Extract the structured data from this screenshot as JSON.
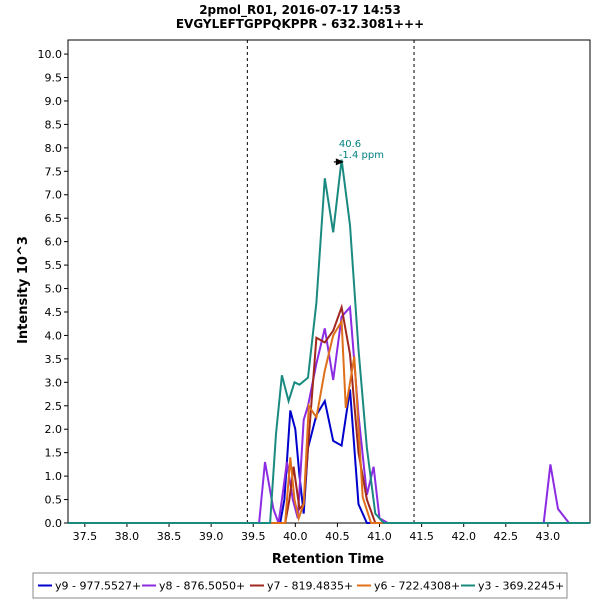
{
  "chart_data": {
    "type": "line",
    "title": "2pmol_R01, 2016-07-17 14:53",
    "subtitle": "EVGYLEFTGPPQKPPR - 632.3081+++",
    "xlabel": "Retention Time",
    "ylabel": "Intensity 10^3",
    "xlim": [
      37.3,
      43.5
    ],
    "ylim": [
      0,
      10.3
    ],
    "xticks": [
      37.5,
      38.0,
      38.5,
      39.0,
      39.5,
      40.0,
      40.5,
      41.0,
      41.5,
      42.0,
      42.5,
      43.0
    ],
    "yticks": [
      0.0,
      0.5,
      1.0,
      1.5,
      2.0,
      2.5,
      3.0,
      3.5,
      4.0,
      4.5,
      5.0,
      5.5,
      6.0,
      6.5,
      7.0,
      7.5,
      8.0,
      8.5,
      9.0,
      9.5,
      10.0
    ],
    "grid": false,
    "integration_bounds": [
      39.43,
      41.41
    ],
    "legend_position": "bottom",
    "annotation": {
      "x": 40.6,
      "y": 7.7,
      "label_line1": "40.6",
      "label_line2": "-1.4 ppm",
      "color": "#008080"
    },
    "series": [
      {
        "name": "y9 - 977.5527+",
        "color": "#0000cc",
        "x": [
          37.3,
          39.82,
          39.87,
          39.94,
          40.0,
          40.05,
          40.1,
          40.15,
          40.25,
          40.35,
          40.45,
          40.55,
          40.65,
          40.75,
          40.85,
          41.0,
          43.5
        ],
        "y": [
          0,
          0,
          0.5,
          2.4,
          2.0,
          1.0,
          0.2,
          1.6,
          2.3,
          2.6,
          1.75,
          1.65,
          2.85,
          0.4,
          0,
          0,
          0
        ]
      },
      {
        "name": "y8 - 876.5050+",
        "color": "#8b2be2",
        "x": [
          37.3,
          39.57,
          39.64,
          39.74,
          39.8,
          39.84,
          39.9,
          39.97,
          40.03,
          40.1,
          40.15,
          40.25,
          40.35,
          40.45,
          40.55,
          40.65,
          40.75,
          40.85,
          40.93,
          41.0,
          41.1,
          42.95,
          43.03,
          43.12,
          43.25,
          43.5
        ],
        "y": [
          0,
          0,
          1.3,
          0.3,
          0,
          0.5,
          1.3,
          0.5,
          0.1,
          2.2,
          2.5,
          3.4,
          4.15,
          3.05,
          4.4,
          4.6,
          2.3,
          0.6,
          1.2,
          0.1,
          0,
          0,
          1.25,
          0.3,
          0,
          0
        ]
      },
      {
        "name": "y7 - 819.4835+",
        "color": "#a0281e",
        "x": [
          37.3,
          39.88,
          39.93,
          39.98,
          40.05,
          40.1,
          40.15,
          40.25,
          40.35,
          40.45,
          40.55,
          40.65,
          40.75,
          40.85,
          40.95,
          41.5,
          43.5
        ],
        "y": [
          0,
          0,
          0.5,
          1.2,
          0.3,
          0.4,
          1.6,
          3.95,
          3.85,
          4.1,
          4.6,
          3.6,
          1.5,
          0.5,
          0,
          0,
          0
        ]
      },
      {
        "name": "y6 - 722.4308+",
        "color": "#e06f1a",
        "x": [
          37.3,
          39.88,
          39.94,
          39.99,
          40.04,
          40.1,
          40.16,
          40.25,
          40.35,
          40.45,
          40.55,
          40.6,
          40.7,
          40.8,
          40.9,
          41.5,
          43.5
        ],
        "y": [
          0,
          0,
          1.4,
          0.5,
          0.1,
          0.4,
          2.5,
          2.25,
          3.25,
          4.0,
          4.3,
          2.45,
          3.55,
          0.55,
          0,
          0,
          0
        ]
      },
      {
        "name": "y3 - 369.2245+",
        "color": "#1a8a80",
        "x": [
          37.3,
          39.7,
          39.77,
          39.84,
          39.92,
          39.99,
          40.05,
          40.15,
          40.25,
          40.35,
          40.45,
          40.55,
          40.65,
          40.75,
          40.85,
          40.95,
          41.05,
          41.5,
          43.5
        ],
        "y": [
          0,
          0,
          1.9,
          3.15,
          2.6,
          3.0,
          2.95,
          3.1,
          4.7,
          7.35,
          6.2,
          7.75,
          6.35,
          3.7,
          1.6,
          0.2,
          0,
          0,
          0
        ]
      }
    ]
  }
}
